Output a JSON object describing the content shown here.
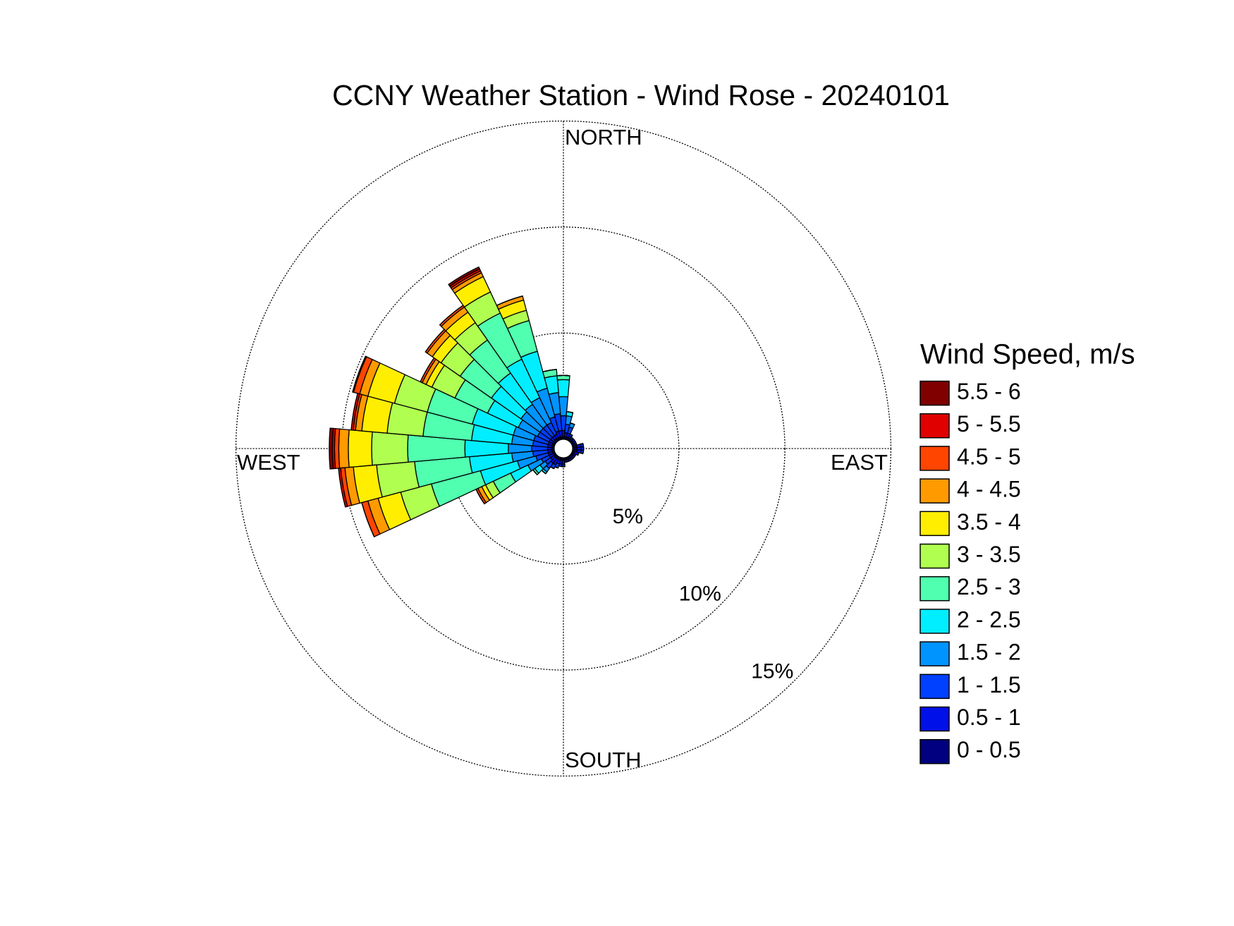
{
  "chart_data": {
    "type": "windrose",
    "title": "CCNY Weather Station - Wind Rose - 20240101",
    "legend_title": "Wind Speed, m/s",
    "compass_labels": [
      "NORTH",
      "EAST",
      "SOUTH",
      "WEST"
    ],
    "x": [
      0,
      10,
      20,
      30,
      40,
      50,
      60,
      70,
      80,
      90,
      100,
      110,
      120,
      130,
      140,
      150,
      160,
      170,
      180,
      190,
      200,
      210,
      220,
      230,
      240,
      250,
      260,
      270,
      280,
      290,
      300,
      310,
      320,
      330,
      340,
      350
    ],
    "rlim": [
      0,
      15
    ],
    "rticks": [
      {
        "value": 5,
        "label": "5%"
      },
      {
        "value": 10,
        "label": "10%"
      },
      {
        "value": 15,
        "label": "15%"
      }
    ],
    "grid": true,
    "legend": "right",
    "series": [
      {
        "name": "0 - 0.5",
        "color": "#000080",
        "values": [
          0.1,
          0.1,
          0.1,
          0.1,
          0.1,
          0.1,
          0.1,
          0.1,
          0.2,
          0.2,
          0.2,
          0.1,
          0.1,
          0.1,
          0.1,
          0.1,
          0.1,
          0.1,
          0.1,
          0.1,
          0.1,
          0.1,
          0.1,
          0.1,
          0.1,
          0.1,
          0.1,
          0.1,
          0.1,
          0.1,
          0.1,
          0.1,
          0.1,
          0.1,
          0.1,
          0.1
        ]
      },
      {
        "name": "0.5 - 1",
        "color": "#0010e8",
        "values": [
          0.3,
          0.2,
          0.2,
          0.1,
          0.1,
          0.1,
          0.1,
          0.1,
          0.2,
          0.2,
          0.2,
          0.2,
          0.1,
          0.1,
          0.1,
          0.1,
          0.1,
          0.1,
          0.2,
          0.2,
          0.2,
          0.3,
          0.3,
          0.2,
          0.2,
          0.2,
          0.2,
          0.2,
          0.2,
          0.2,
          0.2,
          0.2,
          0.2,
          0.2,
          0.3,
          0.3
        ]
      },
      {
        "name": "1 - 1.5",
        "color": "#0040ff",
        "values": [
          0.7,
          0.4,
          0.3,
          0.1,
          0,
          0,
          0,
          0,
          0.1,
          0.1,
          0.1,
          0,
          0,
          0,
          0,
          0,
          0,
          0,
          0.1,
          0.1,
          0.2,
          0.2,
          0.3,
          0.3,
          0.4,
          0.6,
          0.7,
          0.75,
          0.7,
          0.7,
          0.6,
          0.6,
          0.6,
          0.6,
          0.7,
          0.8
        ]
      },
      {
        "name": "1.5 - 2",
        "color": "#0094ff",
        "values": [
          0.9,
          0.4,
          0.2,
          0,
          0,
          0,
          0,
          0,
          0,
          0,
          0,
          0,
          0,
          0,
          0,
          0,
          0,
          0,
          0,
          0,
          0,
          0,
          0.2,
          0.3,
          0.7,
          0.9,
          1.0,
          1.1,
          1.0,
          1.0,
          1.0,
          1.1,
          1.2,
          1.3,
          1.4,
          1.0
        ]
      },
      {
        "name": "2 - 2.5",
        "color": "#00eeff",
        "values": [
          0.8,
          0.2,
          0,
          0,
          0,
          0,
          0,
          0,
          0,
          0,
          0,
          0,
          0,
          0,
          0,
          0,
          0,
          0,
          0,
          0,
          0,
          0,
          0.1,
          0.3,
          0.9,
          1.8,
          2.0,
          2.05,
          1.9,
          2.0,
          1.6,
          1.7,
          1.8,
          2.0,
          1.8,
          0.8
        ]
      },
      {
        "name": "2.5 - 3",
        "color": "#50ffaf",
        "values": [
          0.2,
          0,
          0,
          0,
          0,
          0,
          0,
          0,
          0,
          0,
          0,
          0,
          0,
          0,
          0,
          0,
          0,
          0,
          0,
          0,
          0,
          0,
          0,
          0.1,
          0.9,
          2.4,
          2.6,
          2.7,
          2.3,
          2.2,
          1.7,
          1.8,
          1.9,
          2.4,
          1.5,
          0.3
        ]
      },
      {
        "name": "3 - 3.5",
        "color": "#b0ff50",
        "values": [
          0,
          0,
          0,
          0,
          0,
          0,
          0,
          0,
          0,
          0,
          0,
          0,
          0,
          0,
          0,
          0,
          0,
          0,
          0,
          0,
          0,
          0,
          0,
          0,
          0.4,
          1.5,
          1.8,
          1.7,
          1.7,
          1.6,
          1.2,
          1.1,
          1.0,
          1.1,
          0.5,
          0
        ]
      },
      {
        "name": "3.5 - 4",
        "color": "#ffee00",
        "values": [
          0,
          0,
          0,
          0,
          0,
          0,
          0,
          0,
          0,
          0,
          0,
          0,
          0,
          0,
          0,
          0,
          0,
          0,
          0,
          0,
          0,
          0,
          0,
          0,
          0.2,
          1.1,
          1.1,
          1.1,
          1.2,
          1.3,
          0.3,
          0.5,
          0.6,
          0.8,
          0.5,
          0
        ]
      },
      {
        "name": "4 - 4.5",
        "color": "#ff9a00",
        "values": [
          0,
          0,
          0,
          0,
          0,
          0,
          0,
          0,
          0,
          0,
          0,
          0,
          0,
          0,
          0,
          0,
          0,
          0,
          0,
          0,
          0,
          0,
          0,
          0,
          0.2,
          0.5,
          0.4,
          0.45,
          0.3,
          0.4,
          0.2,
          0.3,
          0.3,
          0.2,
          0.2,
          0
        ]
      },
      {
        "name": "4.5 - 5",
        "color": "#ff4500",
        "values": [
          0,
          0,
          0,
          0,
          0,
          0,
          0,
          0,
          0,
          0,
          0,
          0,
          0,
          0,
          0,
          0,
          0,
          0,
          0,
          0,
          0,
          0,
          0,
          0,
          0.1,
          0.3,
          0.2,
          0.2,
          0.1,
          0.3,
          0.1,
          0.1,
          0.1,
          0.1,
          0,
          0
        ]
      },
      {
        "name": "5 - 5.5",
        "color": "#e00000",
        "values": [
          0,
          0,
          0,
          0,
          0,
          0,
          0,
          0,
          0,
          0,
          0,
          0,
          0,
          0,
          0,
          0,
          0,
          0,
          0,
          0,
          0,
          0,
          0,
          0,
          0,
          0,
          0.1,
          0.1,
          0.1,
          0.05,
          0,
          0,
          0,
          0.1,
          0,
          0
        ]
      },
      {
        "name": "5.5 - 6",
        "color": "#800000",
        "values": [
          0,
          0,
          0,
          0,
          0,
          0,
          0,
          0,
          0,
          0,
          0,
          0,
          0,
          0,
          0,
          0,
          0,
          0,
          0,
          0,
          0,
          0,
          0,
          0,
          0,
          0,
          0,
          0.15,
          0,
          0,
          0,
          0,
          0,
          0.1,
          0,
          0
        ]
      }
    ]
  }
}
